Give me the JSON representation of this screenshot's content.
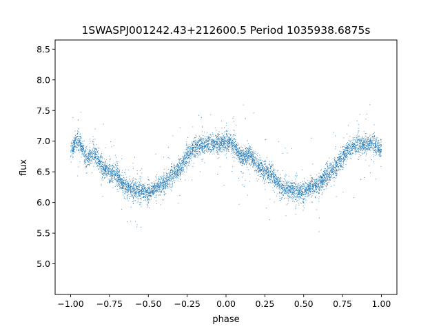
{
  "chart_data": {
    "type": "scatter",
    "title": "1SWASPJ001242.43+212600.5 Period 1035938.6875s",
    "xlabel": "phase",
    "ylabel": "flux",
    "xlim": [
      -1.1,
      1.1
    ],
    "ylim": [
      4.5,
      8.65
    ],
    "xticks": [
      -1.0,
      -0.75,
      -0.5,
      -0.25,
      0.0,
      0.25,
      0.5,
      0.75,
      1.0
    ],
    "xtick_labels": [
      "−1.00",
      "−0.75",
      "−0.50",
      "−0.25",
      "0.00",
      "0.25",
      "0.50",
      "0.75",
      "1.00"
    ],
    "yticks": [
      5.0,
      5.5,
      6.0,
      6.5,
      7.0,
      7.5,
      8.0,
      8.5
    ],
    "ytick_labels": [
      "5.0",
      "5.5",
      "6.0",
      "6.5",
      "7.0",
      "7.5",
      "8.0",
      "8.5"
    ],
    "grid": false,
    "marker_color": "#1f77b4",
    "series": [
      {
        "profile_phase": [
          -1.0,
          -0.95,
          -0.9,
          -0.85,
          -0.8,
          -0.75,
          -0.7,
          -0.65,
          -0.6,
          -0.55,
          -0.5,
          -0.45,
          -0.4,
          -0.35,
          -0.3,
          -0.25,
          -0.2,
          -0.15,
          -0.1,
          -0.05,
          0.0,
          0.05,
          0.1,
          0.15,
          0.2,
          0.25,
          0.3,
          0.35,
          0.4,
          0.45,
          0.5,
          0.55,
          0.6,
          0.65,
          0.7,
          0.75,
          0.8,
          0.85,
          0.9,
          0.95,
          1.0
        ],
        "profile_flux": [
          6.85,
          7.05,
          6.7,
          6.8,
          6.6,
          6.5,
          6.45,
          6.25,
          6.2,
          6.2,
          6.15,
          6.25,
          6.3,
          6.45,
          6.55,
          6.75,
          6.9,
          6.95,
          6.95,
          6.95,
          7.0,
          6.95,
          6.7,
          6.8,
          6.6,
          6.5,
          6.45,
          6.25,
          6.2,
          6.2,
          6.15,
          6.25,
          6.3,
          6.45,
          6.55,
          6.75,
          6.9,
          6.95,
          6.95,
          6.95,
          6.85
        ]
      }
    ]
  }
}
